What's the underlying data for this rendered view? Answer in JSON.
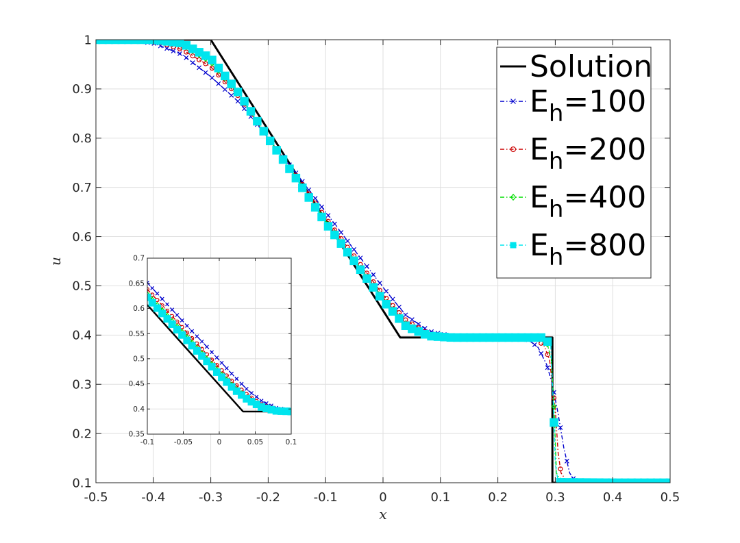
{
  "chart_data": [
    {
      "type": "line",
      "xlabel": "x",
      "ylabel": "u",
      "xlim": [
        -0.5,
        0.5
      ],
      "ylim": [
        0.1,
        1.0
      ],
      "xticks": [
        -0.5,
        -0.4,
        -0.3,
        -0.2,
        -0.1,
        0,
        0.1,
        0.2,
        0.3,
        0.4,
        0.5
      ],
      "xtick_labels": [
        "-0.5",
        "-0.4",
        "-0.3",
        "-0.2",
        "-0.1",
        "0",
        "0.1",
        "0.2",
        "0.3",
        "0.4",
        "0.5"
      ],
      "yticks": [
        0.1,
        0.2,
        0.3,
        0.4,
        0.5,
        0.6,
        0.7,
        0.8,
        0.9,
        1.0
      ],
      "ytick_labels": [
        "0.1",
        "0.2",
        "0.3",
        "0.4",
        "0.5",
        "0.6",
        "0.7",
        "0.8",
        "0.9",
        "1"
      ],
      "grid": true,
      "legend_position": "top-right",
      "legend": [
        {
          "base": "Solution",
          "sub": "",
          "suffix": ""
        },
        {
          "base": "E",
          "sub": "h",
          "suffix": "=100"
        },
        {
          "base": "E",
          "sub": "h",
          "suffix": "=200"
        },
        {
          "base": "E",
          "sub": "h",
          "suffix": "=400"
        },
        {
          "base": "E",
          "sub": "h",
          "suffix": "=800"
        }
      ],
      "series": [
        {
          "name": "Solution",
          "color": "#000000",
          "style": "solid",
          "marker": "none",
          "x": [
            -0.5,
            -0.3,
            0.03,
            0.295,
            0.295,
            0.5
          ],
          "y": [
            1.0,
            1.0,
            0.395,
            0.395,
            0.1,
            0.1
          ]
        },
        {
          "name": "E_h=100",
          "color": "#0000cd",
          "style": "dashdot",
          "marker": "x",
          "x": [
            -0.5,
            -0.45,
            -0.4,
            -0.35,
            -0.3,
            -0.25,
            -0.2,
            -0.15,
            -0.1,
            -0.05,
            0.0,
            0.04,
            0.08,
            0.12,
            0.2,
            0.25,
            0.27,
            0.285,
            0.295,
            0.305,
            0.315,
            0.325,
            0.335,
            0.36,
            0.4,
            0.5
          ],
          "y": [
            1.0,
            1.0,
            0.993,
            0.97,
            0.925,
            0.872,
            0.8,
            0.727,
            0.65,
            0.573,
            0.497,
            0.44,
            0.408,
            0.398,
            0.395,
            0.393,
            0.375,
            0.34,
            0.3,
            0.24,
            0.17,
            0.12,
            0.102,
            0.1,
            0.1,
            0.1
          ]
        },
        {
          "name": "E_h=200",
          "color": "#cc0000",
          "style": "dashdot",
          "marker": "circle",
          "x": [
            -0.5,
            -0.45,
            -0.4,
            -0.35,
            -0.3,
            -0.25,
            -0.2,
            -0.15,
            -0.1,
            -0.05,
            0.0,
            0.04,
            0.08,
            0.12,
            0.2,
            0.26,
            0.28,
            0.29,
            0.3,
            0.305,
            0.31,
            0.32,
            0.33,
            0.4,
            0.5
          ],
          "y": [
            1.0,
            1.0,
            0.998,
            0.98,
            0.945,
            0.883,
            0.8,
            0.722,
            0.638,
            0.56,
            0.482,
            0.43,
            0.402,
            0.396,
            0.395,
            0.394,
            0.38,
            0.35,
            0.25,
            0.16,
            0.12,
            0.103,
            0.1,
            0.1,
            0.1
          ]
        },
        {
          "name": "E_h=400",
          "color": "#00dd00",
          "style": "dashdot",
          "marker": "diamond",
          "x": [
            -0.5,
            -0.45,
            -0.4,
            -0.35,
            -0.3,
            -0.25,
            -0.2,
            -0.15,
            -0.1,
            -0.05,
            0.0,
            0.04,
            0.08,
            0.12,
            0.2,
            0.27,
            0.285,
            0.293,
            0.298,
            0.302,
            0.31,
            0.4,
            0.5
          ],
          "y": [
            1.0,
            1.0,
            1.0,
            0.99,
            0.955,
            0.888,
            0.8,
            0.718,
            0.632,
            0.553,
            0.474,
            0.422,
            0.4,
            0.396,
            0.395,
            0.395,
            0.388,
            0.35,
            0.25,
            0.12,
            0.102,
            0.1,
            0.1
          ]
        },
        {
          "name": "E_h=800",
          "color": "#00e5ee",
          "style": "dashdot",
          "marker": "square",
          "x": [
            -0.5,
            -0.45,
            -0.4,
            -0.35,
            -0.3,
            -0.25,
            -0.2,
            -0.15,
            -0.1,
            -0.05,
            0.0,
            0.04,
            0.08,
            0.12,
            0.2,
            0.28,
            0.292,
            0.297,
            0.3,
            0.305,
            0.4,
            0.5
          ],
          "y": [
            1.0,
            1.0,
            1.0,
            0.993,
            0.962,
            0.89,
            0.8,
            0.716,
            0.628,
            0.55,
            0.47,
            0.418,
            0.398,
            0.395,
            0.395,
            0.395,
            0.38,
            0.25,
            0.14,
            0.101,
            0.1,
            0.1
          ]
        }
      ]
    },
    {
      "type": "line",
      "xlim": [
        -0.1,
        0.1
      ],
      "ylim": [
        0.35,
        0.7
      ],
      "xticks": [
        -0.1,
        -0.05,
        0,
        0.05,
        0.1
      ],
      "xtick_labels": [
        "-0.1",
        "-0.05",
        "0",
        "0.05",
        "0.1"
      ],
      "yticks": [
        0.35,
        0.4,
        0.45,
        0.5,
        0.55,
        0.6,
        0.65,
        0.7
      ],
      "ytick_labels": [
        "0.35",
        "0.4",
        "0.45",
        "0.5",
        "0.55",
        "0.6",
        "0.65",
        "0.7"
      ],
      "grid": true,
      "series": [
        {
          "name": "Solution",
          "color": "#000000",
          "style": "solid",
          "marker": "none",
          "x": [
            -0.1,
            0.033,
            0.1
          ],
          "y": [
            0.607,
            0.395,
            0.395
          ]
        },
        {
          "name": "E_h=100",
          "color": "#0000cd",
          "style": "dashdot",
          "marker": "x",
          "x": [
            -0.1,
            -0.08,
            -0.06,
            -0.04,
            -0.02,
            0.0,
            0.02,
            0.04,
            0.06,
            0.08,
            0.1
          ],
          "y": [
            0.651,
            0.62,
            0.589,
            0.558,
            0.528,
            0.497,
            0.466,
            0.437,
            0.415,
            0.402,
            0.397
          ]
        },
        {
          "name": "E_h=200",
          "color": "#cc0000",
          "style": "dashdot",
          "marker": "circle",
          "x": [
            -0.1,
            -0.08,
            -0.06,
            -0.04,
            -0.02,
            0.0,
            0.02,
            0.04,
            0.06,
            0.08,
            0.1
          ],
          "y": [
            0.638,
            0.607,
            0.576,
            0.544,
            0.513,
            0.482,
            0.452,
            0.427,
            0.408,
            0.399,
            0.396
          ]
        },
        {
          "name": "E_h=400",
          "color": "#00dd00",
          "style": "dashdot",
          "marker": "diamond",
          "x": [
            -0.1,
            -0.08,
            -0.06,
            -0.04,
            -0.02,
            0.0,
            0.02,
            0.04,
            0.06,
            0.08,
            0.1
          ],
          "y": [
            0.629,
            0.598,
            0.567,
            0.536,
            0.505,
            0.474,
            0.445,
            0.421,
            0.405,
            0.397,
            0.395
          ]
        },
        {
          "name": "E_h=800",
          "color": "#00e5ee",
          "style": "dashdot",
          "marker": "square",
          "x": [
            -0.1,
            -0.08,
            -0.06,
            -0.04,
            -0.02,
            0.0,
            0.02,
            0.04,
            0.06,
            0.08,
            0.1
          ],
          "y": [
            0.622,
            0.591,
            0.56,
            0.529,
            0.499,
            0.468,
            0.44,
            0.418,
            0.403,
            0.396,
            0.395
          ]
        }
      ]
    }
  ]
}
